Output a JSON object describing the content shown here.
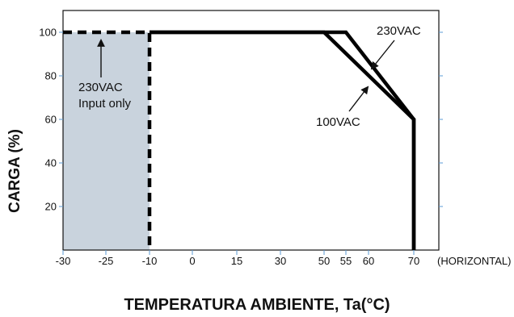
{
  "chart_data": {
    "type": "line",
    "title": "",
    "xlabel": "TEMPERATURA AMBIENTE, Ta(°C)",
    "ylabel": "CARGA (%)",
    "x_unit_note": "(HORIZONTAL)",
    "x_ticks": [
      "-30",
      "-25",
      "-10",
      "0",
      "15",
      "30",
      "50",
      "55",
      "60",
      "70"
    ],
    "y_ticks": [
      "20",
      "40",
      "60",
      "80",
      "100"
    ],
    "ylim": [
      0,
      110
    ],
    "grid": false,
    "colors": {
      "line": "#000000",
      "shade": "#c9d3dd",
      "tick_accent": "#5b9bd5"
    },
    "series": [
      {
        "name": "230VAC",
        "points": [
          [
            "-10",
            100
          ],
          [
            "55",
            100
          ],
          [
            "70",
            60
          ],
          [
            "70",
            0
          ]
        ]
      },
      {
        "name": "100VAC",
        "points": [
          [
            "-10",
            100
          ],
          [
            "50",
            100
          ],
          [
            "70",
            60
          ],
          [
            "70",
            0
          ]
        ]
      },
      {
        "name": "230VAC Input only",
        "style": "dashed",
        "points": [
          [
            "-30",
            100
          ],
          [
            "-10",
            100
          ],
          [
            "-10",
            0
          ]
        ]
      }
    ],
    "shaded_region": {
      "x_from": "-30",
      "x_to": "-10",
      "y_from": 0,
      "y_to": 100
    },
    "annotations": [
      {
        "lines": [
          "230VAC"
        ],
        "target_series": "230VAC"
      },
      {
        "lines": [
          "100VAC"
        ],
        "target_series": "100VAC"
      },
      {
        "lines": [
          "230VAC",
          "Input only"
        ],
        "target_series": "230VAC Input only"
      }
    ]
  }
}
